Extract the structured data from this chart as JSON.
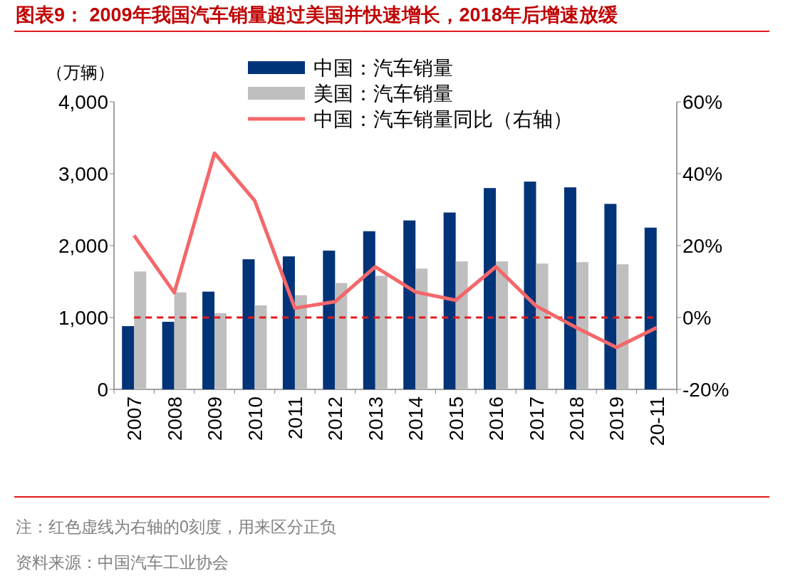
{
  "chart_data": {
    "type": "bar",
    "title": "图表9： 2009年我国汽车销量超过美国并快速增长，2018年后增速放缓",
    "ylabel": "（万辆）",
    "categories": [
      "2007",
      "2008",
      "2009",
      "2010",
      "2011",
      "2012",
      "2013",
      "2014",
      "2015",
      "2016",
      "2017",
      "2018",
      "2019",
      "20-11"
    ],
    "series": [
      {
        "name": "中国：汽车销量",
        "color": "#003378",
        "values": [
          880,
          940,
          1360,
          1810,
          1850,
          1930,
          2200,
          2350,
          2460,
          2800,
          2890,
          2810,
          2580,
          2250
        ]
      },
      {
        "name": "美国：汽车销量",
        "color": "#bfbfbf",
        "values": [
          1640,
          1350,
          1060,
          1170,
          1310,
          1480,
          1580,
          1680,
          1780,
          1780,
          1750,
          1770,
          1740,
          null
        ]
      },
      {
        "name": "中国：汽车销量同比（右轴）",
        "type": "line",
        "axis": "y2",
        "color": "#f4676a",
        "values": [
          22.8,
          6.9,
          45.7,
          32.5,
          2.6,
          4.4,
          14.1,
          7.1,
          4.8,
          14.1,
          3.2,
          -2.8,
          -8.3,
          -2.8
        ]
      }
    ],
    "ylim": [
      0,
      4000
    ],
    "yticks": [
      0,
      {
        "value": 1000,
        "label": "1,000"
      },
      {
        "value": 2000,
        "label": "2,000"
      },
      {
        "value": 3000,
        "label": "3,000"
      },
      {
        "value": 4000,
        "label": "4,000"
      }
    ],
    "y2lim": [
      -20,
      60
    ],
    "y2ticks": [
      {
        "value": -20,
        "label": "-20%"
      },
      {
        "value": 0,
        "label": "0%"
      },
      {
        "value": 20,
        "label": "20%"
      },
      {
        "value": 40,
        "label": "40%"
      },
      {
        "value": 60,
        "label": "60%"
      }
    ],
    "ref_lines": [
      {
        "axis": "y2",
        "value": 0,
        "color": "#e31a1c",
        "line_style": "dashed"
      }
    ],
    "legend": "top",
    "annotations": [
      "注：红色虚线为右轴的0刻度，用来区分正负",
      "资料来源：中国汽车工业协会"
    ]
  }
}
